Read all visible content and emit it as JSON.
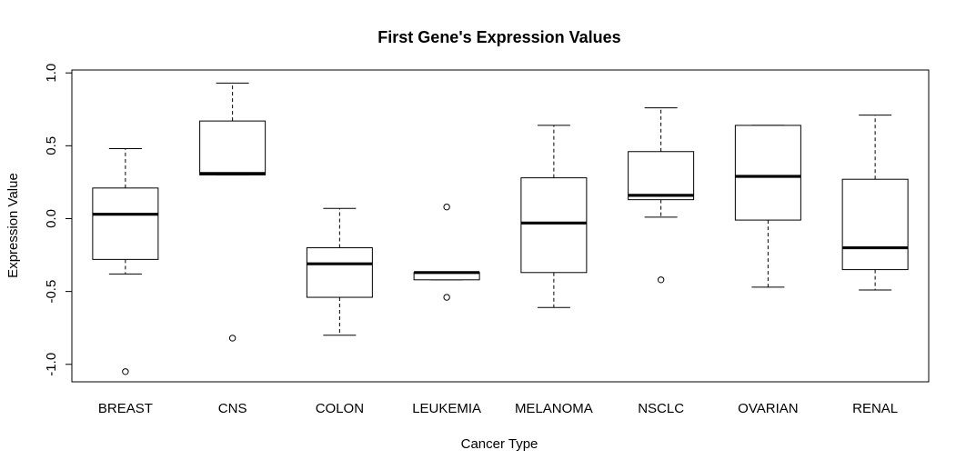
{
  "chart_data": {
    "type": "boxplot",
    "title": "First Gene's Expression Values",
    "xlabel": "Cancer Type",
    "ylabel": "Expression Value",
    "ylim": [
      -1.12,
      1.02
    ],
    "yticks": [
      -1.0,
      -0.5,
      0.0,
      0.5,
      1.0
    ],
    "ytick_labels": [
      "-1.0",
      "-0.5",
      "0.0",
      "0.5",
      "1.0"
    ],
    "grid": false,
    "categories": [
      "BREAST",
      "CNS",
      "COLON",
      "LEUKEMIA",
      "MELANOMA",
      "NSCLC",
      "OVARIAN",
      "RENAL"
    ],
    "boxes": [
      {
        "category": "BREAST",
        "whisker_low": -0.38,
        "q1": -0.28,
        "median": 0.03,
        "q3": 0.21,
        "whisker_high": 0.48,
        "outliers": [
          -1.05
        ]
      },
      {
        "category": "CNS",
        "whisker_low": 0.3,
        "q1": 0.3,
        "median": 0.31,
        "q3": 0.67,
        "whisker_high": 0.93,
        "outliers": [
          -0.82
        ]
      },
      {
        "category": "COLON",
        "whisker_low": -0.8,
        "q1": -0.54,
        "median": -0.31,
        "q3": -0.2,
        "whisker_high": 0.07,
        "outliers": []
      },
      {
        "category": "LEUKEMIA",
        "whisker_low": -0.42,
        "q1": -0.42,
        "median": -0.37,
        "q3": -0.37,
        "whisker_high": -0.37,
        "outliers": [
          0.08,
          -0.54
        ]
      },
      {
        "category": "MELANOMA",
        "whisker_low": -0.61,
        "q1": -0.37,
        "median": -0.03,
        "q3": 0.28,
        "whisker_high": 0.64,
        "outliers": []
      },
      {
        "category": "NSCLC",
        "whisker_low": 0.01,
        "q1": 0.13,
        "median": 0.16,
        "q3": 0.46,
        "whisker_high": 0.76,
        "outliers": [
          -0.42
        ]
      },
      {
        "category": "OVARIAN",
        "whisker_low": -0.47,
        "q1": -0.01,
        "median": 0.29,
        "q3": 0.64,
        "whisker_high": 0.64,
        "outliers": []
      },
      {
        "category": "RENAL",
        "whisker_low": -0.49,
        "q1": -0.35,
        "median": -0.2,
        "q3": 0.27,
        "whisker_high": 0.71,
        "outliers": []
      }
    ]
  }
}
